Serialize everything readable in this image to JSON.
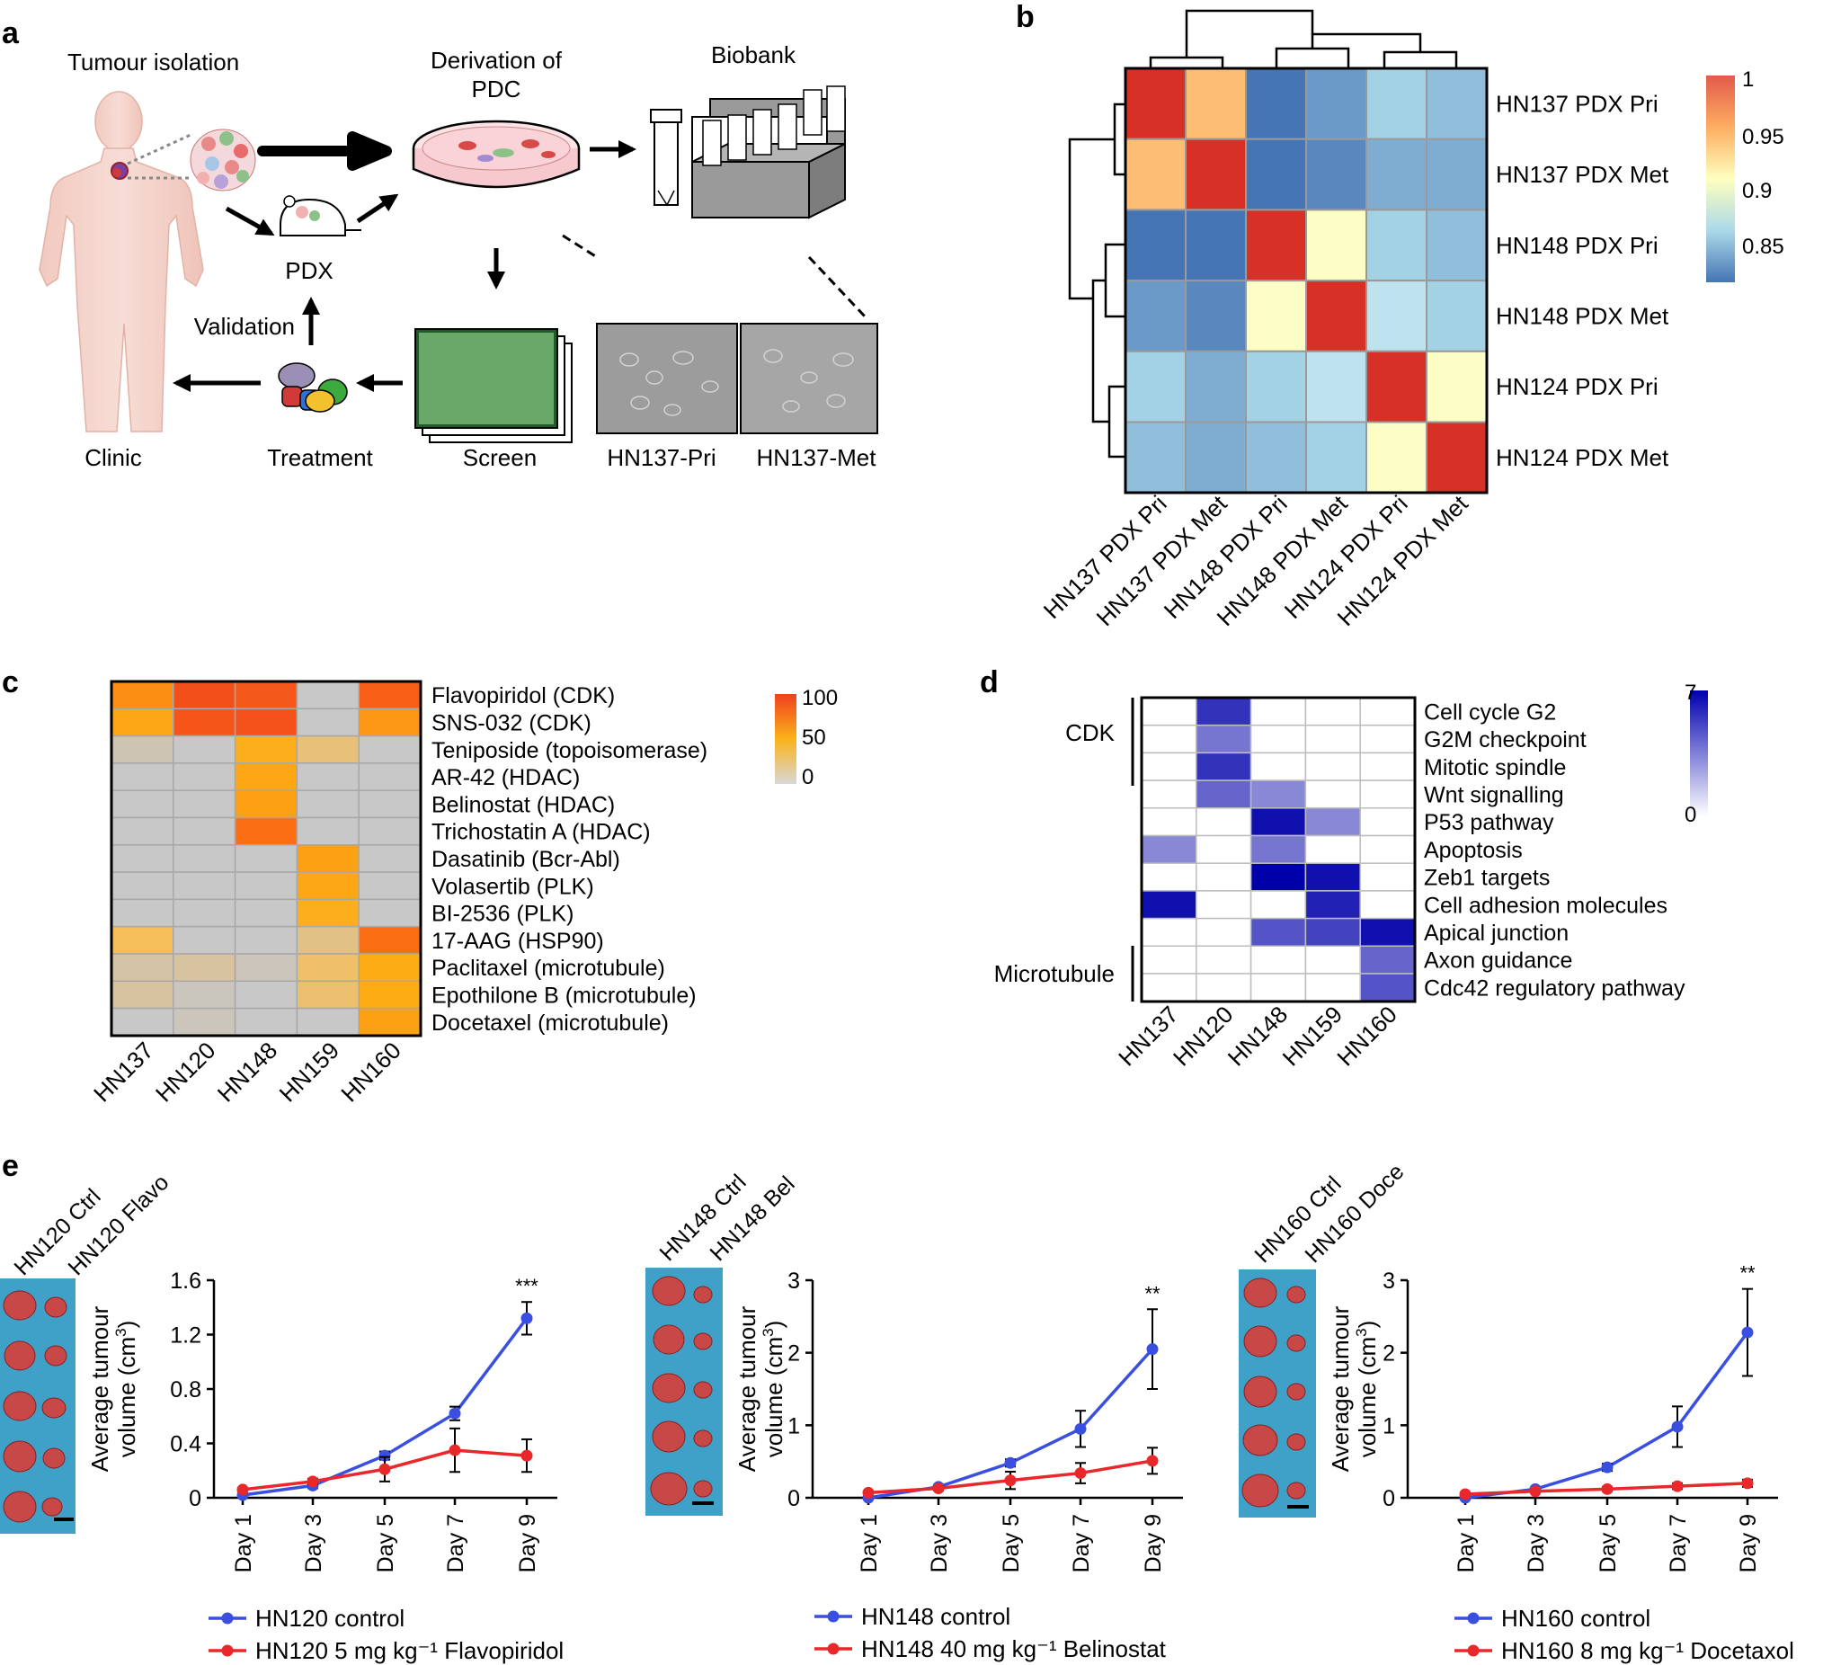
{
  "panel_labels": [
    "a",
    "b",
    "c",
    "d",
    "e"
  ],
  "panel_a": {
    "tumour_isolation": "Tumour isolation",
    "derivation_line1": "Derivation of",
    "derivation_line2": "PDC",
    "biobank": "Biobank",
    "pdx": "PDX",
    "validation": "Validation",
    "clinic": "Clinic",
    "treatment": "Treatment",
    "screen": "Screen",
    "micrograph_pri": "HN137-Pri",
    "micrograph_met": "HN137-Met"
  },
  "chart_data": [
    {
      "id": "b",
      "type": "heatmap",
      "title": "",
      "rows": [
        "HN137 PDX Pri",
        "HN137 PDX Met",
        "HN148 PDX Pri",
        "HN148 PDX Met",
        "HN124 PDX Pri",
        "HN124 PDX Met"
      ],
      "columns": [
        "HN137 PDX Pri",
        "HN137 PDX Met",
        "HN148 PDX Pri",
        "HN148 PDX Met",
        "HN124 PDX Pri",
        "HN124 PDX Met"
      ],
      "values": [
        [
          1.0,
          0.96,
          0.82,
          0.84,
          0.87,
          0.86
        ],
        [
          0.96,
          1.0,
          0.82,
          0.83,
          0.85,
          0.85
        ],
        [
          0.82,
          0.82,
          1.0,
          0.94,
          0.87,
          0.86
        ],
        [
          0.84,
          0.83,
          0.94,
          1.0,
          0.89,
          0.87
        ],
        [
          0.87,
          0.85,
          0.87,
          0.89,
          1.0,
          0.94
        ],
        [
          0.86,
          0.85,
          0.86,
          0.87,
          0.94,
          1.0
        ]
      ],
      "colorbar": {
        "ticks": [
          "1",
          "0.95",
          "0.9",
          "0.85"
        ],
        "range": [
          0.82,
          1.0
        ]
      },
      "dendrogram": true
    },
    {
      "id": "c",
      "type": "heatmap",
      "rows": [
        "Flavopiridol (CDK)",
        "SNS-032 (CDK)",
        "Teniposide (topoisomerase)",
        "AR-42 (HDAC)",
        "Belinostat (HDAC)",
        "Trichostatin A (HDAC)",
        "Dasatinib (Bcr-Abl)",
        "Volasertib (PLK)",
        "BI-2536 (PLK)",
        "17-AAG (HSP90)",
        "Paclitaxel (microtubule)",
        "Epothilone B (microtubule)",
        "Docetaxel (microtubule)"
      ],
      "columns": [
        "HN137",
        "HN120",
        "HN148",
        "HN159",
        "HN160"
      ],
      "values": [
        [
          72,
          95,
          92,
          0,
          90
        ],
        [
          62,
          93,
          94,
          0,
          68
        ],
        [
          15,
          0,
          58,
          35,
          0
        ],
        [
          0,
          0,
          62,
          0,
          0
        ],
        [
          0,
          0,
          65,
          0,
          0
        ],
        [
          0,
          0,
          85,
          0,
          0
        ],
        [
          0,
          0,
          0,
          65,
          0
        ],
        [
          0,
          0,
          0,
          62,
          0
        ],
        [
          0,
          0,
          0,
          58,
          0
        ],
        [
          45,
          0,
          0,
          30,
          85
        ],
        [
          20,
          22,
          10,
          40,
          60
        ],
        [
          22,
          8,
          0,
          38,
          60
        ],
        [
          0,
          10,
          0,
          0,
          65
        ]
      ],
      "colorbar": {
        "ticks": [
          "100",
          "50",
          "0"
        ],
        "range": [
          0,
          100
        ]
      }
    },
    {
      "id": "d",
      "type": "heatmap",
      "rows": [
        "Cell cycle G2",
        "G2M checkpoint",
        "Mitotic spindle",
        "Wnt signalling",
        "P53 pathway",
        "Apoptosis",
        "Zeb1 targets",
        "Cell adhesion molecules",
        "Apical junction",
        "Axon guidance",
        "Cdc42 regulatory pathway"
      ],
      "columns": [
        "HN137",
        "HN120",
        "HN148",
        "HN159",
        "HN160"
      ],
      "values": [
        [
          0,
          5.5,
          0,
          0,
          0
        ],
        [
          0,
          3.5,
          0,
          0,
          0
        ],
        [
          0,
          5.5,
          0,
          0,
          0
        ],
        [
          0,
          4.0,
          3.0,
          0,
          0
        ],
        [
          0,
          0,
          6.5,
          3.0,
          0
        ],
        [
          3.0,
          0,
          3.5,
          0,
          0
        ],
        [
          0,
          0,
          7.0,
          6.5,
          0
        ],
        [
          6.5,
          0,
          0,
          6.0,
          0
        ],
        [
          0,
          0,
          4.5,
          5.0,
          6.5
        ],
        [
          0,
          0,
          0,
          0,
          4.0
        ],
        [
          0,
          0,
          0,
          0,
          4.5
        ]
      ],
      "colorbar": {
        "ticks": [
          "7",
          "0"
        ],
        "range": [
          0,
          7
        ]
      },
      "groups": [
        {
          "label": "CDK",
          "rows": [
            0,
            2
          ]
        },
        {
          "label": "Microtubule",
          "rows": [
            9,
            10
          ]
        }
      ]
    },
    {
      "id": "e1",
      "type": "line",
      "photo_labels": [
        "HN120 Ctrl",
        "HN120 Flavo"
      ],
      "ylabel_line1": "Average tumour",
      "ylabel_line2": "volume (cm",
      "ylabel_sup": "3",
      "ylabel_close": ")",
      "categories": [
        "Day 1",
        "Day 3",
        "Day 5",
        "Day 7",
        "Day 9"
      ],
      "ylim": [
        0,
        1.6
      ],
      "yticks": [
        "0",
        "0.4",
        "0.8",
        "1.2",
        "1.6"
      ],
      "significance": "***",
      "series": [
        {
          "name": "HN120 control",
          "color": "#3a4fe0",
          "values": [
            0.02,
            0.09,
            0.31,
            0.62,
            1.32
          ],
          "errors": [
            0.01,
            0.02,
            0.03,
            0.05,
            0.12
          ]
        },
        {
          "name": "HN120 5 mg kg⁻¹ Flavopiridol",
          "color": "#e8282b",
          "values": [
            0.06,
            0.12,
            0.21,
            0.35,
            0.31
          ],
          "errors": [
            0.01,
            0.02,
            0.09,
            0.16,
            0.12
          ]
        }
      ]
    },
    {
      "id": "e2",
      "type": "line",
      "photo_labels": [
        "HN148 Ctrl",
        "HN148 Bel"
      ],
      "ylabel_line1": "Average tumour",
      "ylabel_line2": "volume (cm",
      "ylabel_sup": "3",
      "ylabel_close": ")",
      "categories": [
        "Day 1",
        "Day 3",
        "Day 5",
        "Day 7",
        "Day 9"
      ],
      "ylim": [
        0,
        3
      ],
      "yticks": [
        "0",
        "1",
        "2",
        "3"
      ],
      "significance": "**",
      "series": [
        {
          "name": "HN148 control",
          "color": "#3a4fe0",
          "values": [
            0.0,
            0.15,
            0.48,
            0.95,
            2.05
          ],
          "errors": [
            0.01,
            0.02,
            0.05,
            0.25,
            0.55
          ]
        },
        {
          "name": "HN148 40 mg kg⁻¹ Belinostat",
          "color": "#e8282b",
          "values": [
            0.07,
            0.13,
            0.24,
            0.34,
            0.51
          ],
          "errors": [
            0.01,
            0.03,
            0.12,
            0.14,
            0.18
          ]
        }
      ]
    },
    {
      "id": "e3",
      "type": "line",
      "photo_labels": [
        "HN160 Ctrl",
        "HN160 Doce"
      ],
      "ylabel_line1": "Average tumour",
      "ylabel_line2": "volume (cm",
      "ylabel_sup": "3",
      "ylabel_close": ")",
      "categories": [
        "Day 1",
        "Day 3",
        "Day 5",
        "Day 7",
        "Day 9"
      ],
      "ylim": [
        0,
        3
      ],
      "yticks": [
        "0",
        "1",
        "2",
        "3"
      ],
      "significance": "**",
      "series": [
        {
          "name": "HN160 control",
          "color": "#3a4fe0",
          "values": [
            0.0,
            0.12,
            0.42,
            0.98,
            2.28
          ],
          "errors": [
            0.01,
            0.02,
            0.05,
            0.28,
            0.6
          ]
        },
        {
          "name": "HN160 8 mg kg⁻¹ Docetaxol",
          "color": "#e8282b",
          "values": [
            0.05,
            0.09,
            0.12,
            0.16,
            0.2
          ],
          "errors": [
            0.01,
            0.01,
            0.03,
            0.04,
            0.05
          ]
        }
      ]
    }
  ],
  "colors": {
    "blue": "#3a4fe0",
    "red": "#e8282b",
    "heat_high": "#d73027",
    "orange": "#fdae61",
    "grey": "#c9c9c9"
  }
}
